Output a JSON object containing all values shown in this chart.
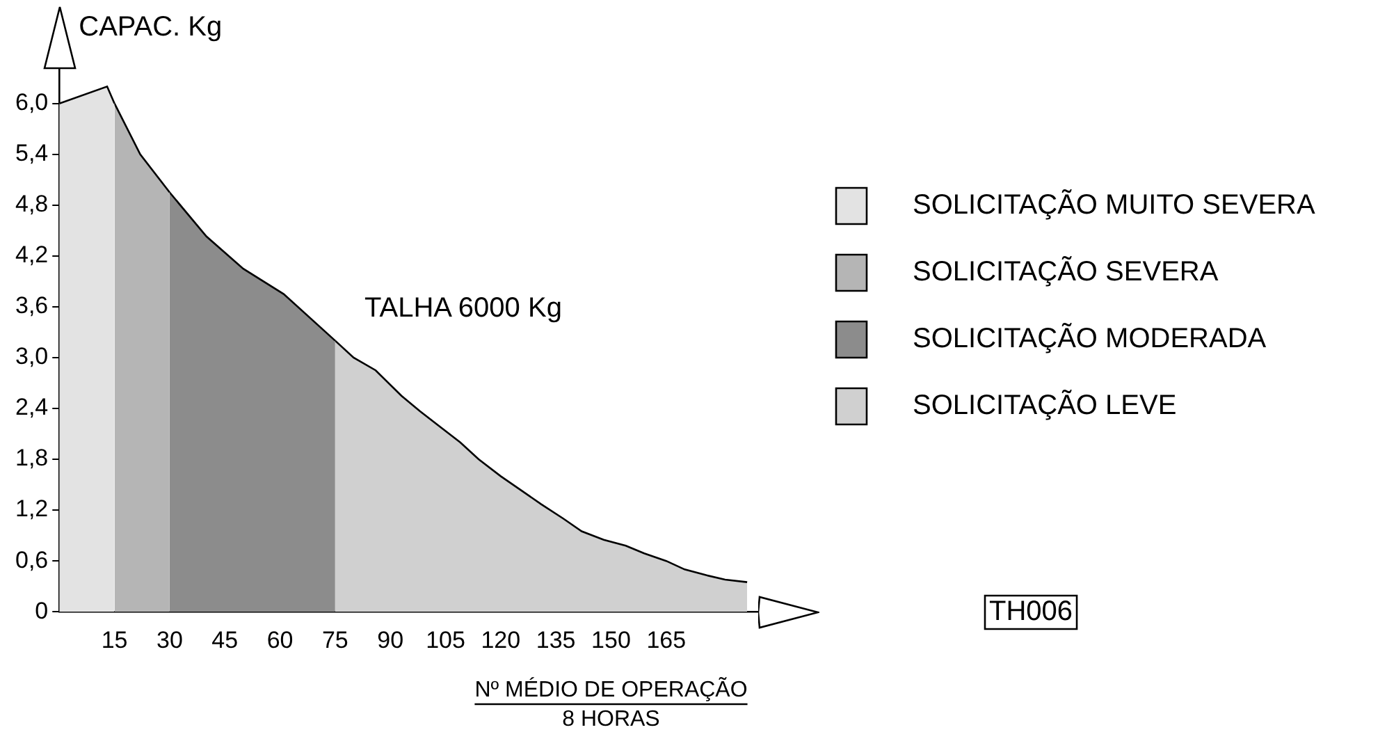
{
  "chart_data": {
    "type": "area",
    "ylabel": "CAPAC. Kg",
    "xlabel": "Nº MÉDIO DE OPERAÇÃO\n8 HORAS",
    "annotations": [
      "TALHA 6000 Kg",
      "TH006"
    ],
    "xlim": [
      0,
      190
    ],
    "xticks": [
      15,
      30,
      45,
      60,
      75,
      90,
      105,
      120,
      135,
      150,
      165
    ],
    "ylim": [
      0,
      6.4
    ],
    "yticks": [
      0,
      {
        "value": 0.6,
        "label": "0,6"
      },
      {
        "value": 1.2,
        "label": "1,2"
      },
      {
        "value": 1.8,
        "label": "1,8"
      },
      {
        "value": 2.4,
        "label": "2,4"
      },
      {
        "value": 3.0,
        "label": "3,0"
      },
      {
        "value": 3.6,
        "label": "3,6"
      },
      {
        "value": 4.2,
        "label": "4,2"
      },
      {
        "value": 4.8,
        "label": "4,8"
      },
      {
        "value": 5.4,
        "label": "5,4"
      },
      {
        "value": 6.0,
        "label": "6,0"
      }
    ],
    "grid": false,
    "legend": "right",
    "marker": "none",
    "series": [
      {
        "name": "SOLICITAÇÃO MUITO SEVERA",
        "color": "#e3e3e3",
        "x": [
          0,
          13,
          15
        ],
        "values": [
          6.0,
          6.2,
          6.0
        ]
      },
      {
        "name": "SOLICITAÇÃO SEVERA",
        "color": "#b5b5b5",
        "x": [
          15,
          22,
          30
        ],
        "values": [
          6.0,
          5.4,
          4.95
        ]
      },
      {
        "name": "SOLICITAÇÃO MODERADA",
        "color": "#8c8c8c",
        "x": [
          30,
          40,
          50,
          61,
          75
        ],
        "values": [
          4.95,
          4.43,
          4.05,
          3.75,
          3.2
        ]
      },
      {
        "name": "SOLICITAÇÃO LEVE",
        "color": "#d0d0d0",
        "x": [
          75,
          80,
          86,
          93,
          98,
          103,
          109,
          114,
          120,
          125,
          131,
          137,
          142,
          148,
          154,
          159,
          165,
          170,
          176,
          181,
          187
        ],
        "values": [
          3.2,
          3.0,
          2.85,
          2.55,
          2.37,
          2.2,
          2.0,
          1.8,
          1.6,
          1.45,
          1.27,
          1.1,
          0.95,
          0.85,
          0.78,
          0.69,
          0.6,
          0.5,
          0.43,
          0.38,
          0.35
        ]
      }
    ]
  }
}
